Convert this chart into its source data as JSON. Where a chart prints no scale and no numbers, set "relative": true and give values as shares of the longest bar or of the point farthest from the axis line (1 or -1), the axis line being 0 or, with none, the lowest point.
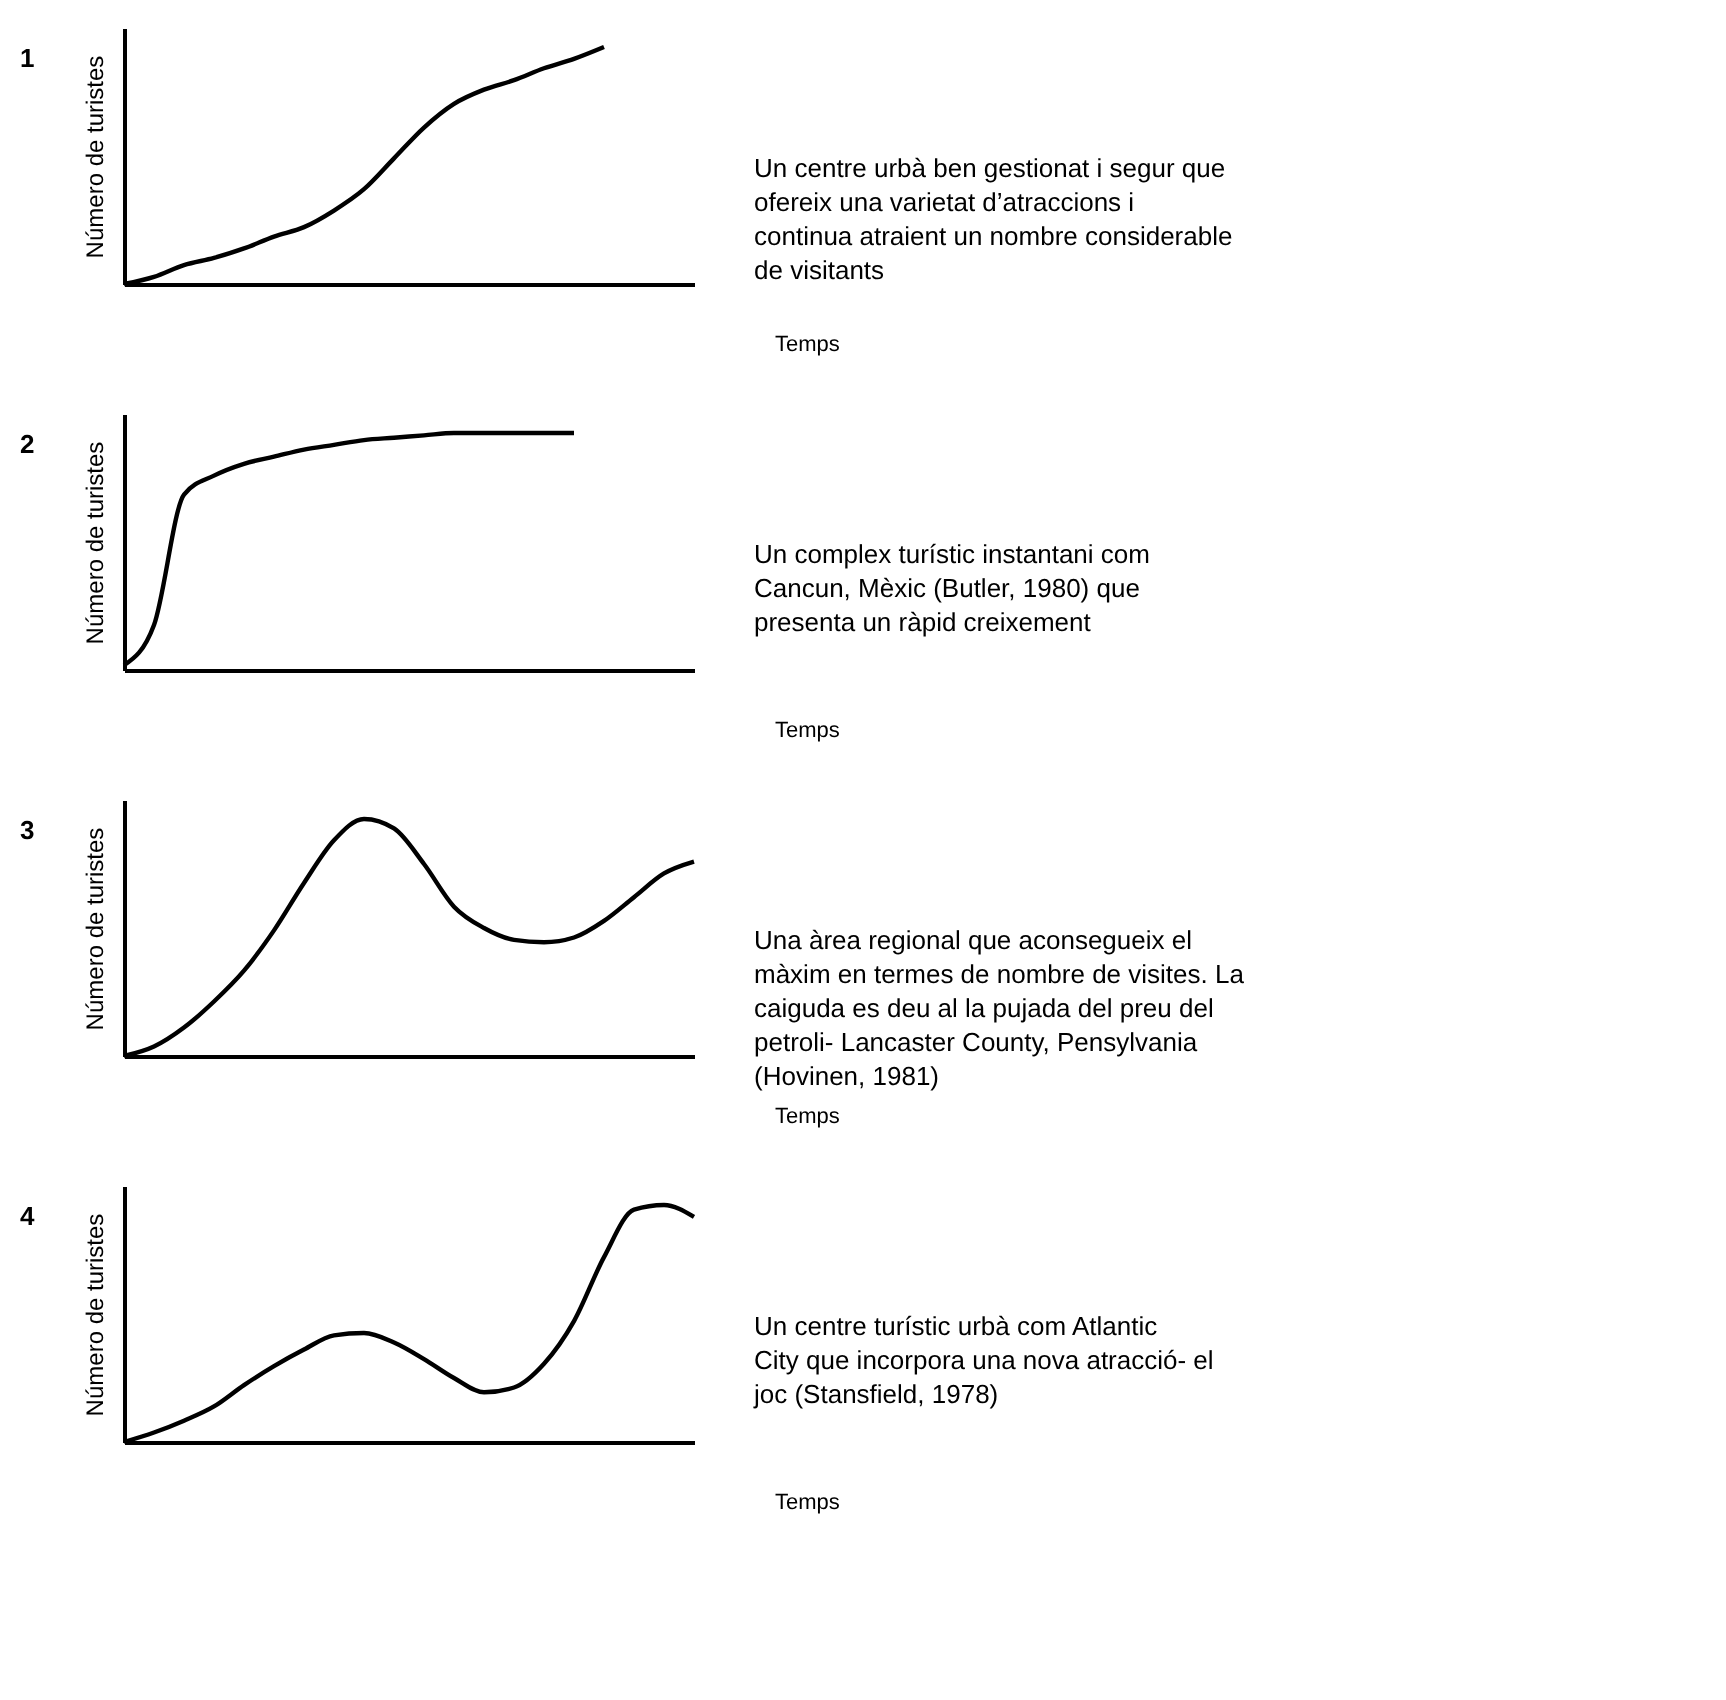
{
  "chart_data": [
    {
      "type": "line",
      "title": "1",
      "xlabel": "Temps",
      "ylabel": "Número de turistes",
      "relative": true,
      "tick_labels": false,
      "categories": [
        null,
        null,
        null,
        null,
        null,
        null,
        null,
        null,
        null,
        null,
        null,
        null,
        null,
        null,
        null,
        null,
        null,
        null,
        null,
        null
      ],
      "series": [
        {
          "color": "#000000",
          "values": [
            0,
            0.03,
            0.08,
            0.11,
            0.15,
            0.2,
            0.24,
            0.31,
            0.4,
            0.53,
            0.66,
            0.76,
            0.82,
            0.86,
            0.91,
            0.95,
            1.0,
            null,
            null,
            null
          ]
        }
      ],
      "annotations": [
        "Un centre urbà ben gestionat i segur que ofereix una varietat d’atraccions i continua atraient un nombre considerable de visitants"
      ]
    },
    {
      "type": "line",
      "title": "2",
      "xlabel": "Temps",
      "ylabel": "Número de turistes",
      "relative": true,
      "tick_labels": false,
      "categories": [
        null,
        null,
        null,
        null,
        null,
        null,
        null,
        null,
        null,
        null,
        null,
        null,
        null,
        null,
        null,
        null,
        null,
        null,
        null,
        null
      ],
      "series": [
        {
          "color": "#000000",
          "values": [
            0.02,
            0.19,
            0.74,
            0.82,
            0.87,
            0.9,
            0.93,
            0.95,
            0.97,
            0.98,
            0.99,
            1.0,
            1.0,
            1.0,
            1.0,
            1.0,
            null,
            null,
            null,
            null
          ]
        }
      ],
      "annotations": [
        "Un complex turístic instantani com Cancun, Mèxic (Butler, 1980) que presenta un ràpid creixement"
      ]
    },
    {
      "type": "line",
      "title": "3",
      "xlabel": "Temps",
      "ylabel": "Número de turistes",
      "relative": true,
      "tick_labels": false,
      "categories": [
        null,
        null,
        null,
        null,
        null,
        null,
        null,
        null,
        null,
        null,
        null,
        null,
        null,
        null,
        null,
        null,
        null,
        null,
        null,
        null
      ],
      "series": [
        {
          "color": "#000000",
          "values": [
            0,
            0.04,
            0.12,
            0.23,
            0.36,
            0.53,
            0.73,
            0.91,
            1.0,
            0.96,
            0.81,
            0.63,
            0.54,
            0.49,
            0.48,
            0.5,
            0.57,
            0.67,
            0.77,
            0.82
          ]
        }
      ],
      "annotations": [
        "Una àrea regional que aconsegueix el màxim en termes de nombre de visites. La caiguda es deu al la pujada del preu del petroli- Lancaster County, Pensylvania (Hovinen, 1981)"
      ]
    },
    {
      "type": "line",
      "title": "4",
      "xlabel": "Temps",
      "ylabel": "Número de turistes",
      "relative": true,
      "tick_labels": false,
      "categories": [
        null,
        null,
        null,
        null,
        null,
        null,
        null,
        null,
        null,
        null,
        null,
        null,
        null,
        null,
        null,
        null,
        null,
        null,
        null,
        null
      ],
      "series": [
        {
          "color": "#000000",
          "values": [
            0,
            0.04,
            0.09,
            0.15,
            0.24,
            0.32,
            0.39,
            0.45,
            0.46,
            0.42,
            0.35,
            0.27,
            0.21,
            0.23,
            0.33,
            0.51,
            0.78,
            0.98,
            1.0,
            0.95
          ]
        }
      ],
      "annotations": [
        "Un centre turístic urbà com Atlantic City que incorpora una nova atracció- el joc (Stansfield, 1978)"
      ]
    }
  ]
}
